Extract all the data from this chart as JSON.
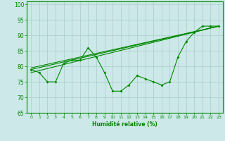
{
  "xlabel": "Humidité relative (%)",
  "xlim": [
    -0.5,
    23.5
  ],
  "ylim": [
    65,
    101
  ],
  "xticks": [
    0,
    1,
    2,
    3,
    4,
    5,
    6,
    7,
    8,
    9,
    10,
    11,
    12,
    13,
    14,
    15,
    16,
    17,
    18,
    19,
    20,
    21,
    22,
    23
  ],
  "yticks": [
    65,
    70,
    75,
    80,
    85,
    90,
    95,
    100
  ],
  "background_color": "#cce8e8",
  "grid_color": "#aacccc",
  "line_color": "#008800",
  "series1_x": [
    0,
    1,
    2,
    3,
    4,
    5,
    6,
    7,
    8,
    9,
    10,
    11,
    12,
    13,
    14,
    15,
    16,
    17,
    18,
    19,
    20,
    21,
    22,
    23
  ],
  "series1_y": [
    79,
    78,
    75,
    75,
    81,
    82,
    82,
    86,
    83,
    78,
    72,
    72,
    74,
    77,
    76,
    75,
    74,
    75,
    83,
    88,
    91,
    93,
    93,
    93
  ],
  "series2_x": [
    0,
    23
  ],
  "series2_y": [
    79.0,
    93.0
  ],
  "series3_x": [
    0,
    23
  ],
  "series3_y": [
    79.5,
    93.0
  ],
  "series4_x": [
    0,
    23
  ],
  "series4_y": [
    78.0,
    93.0
  ]
}
